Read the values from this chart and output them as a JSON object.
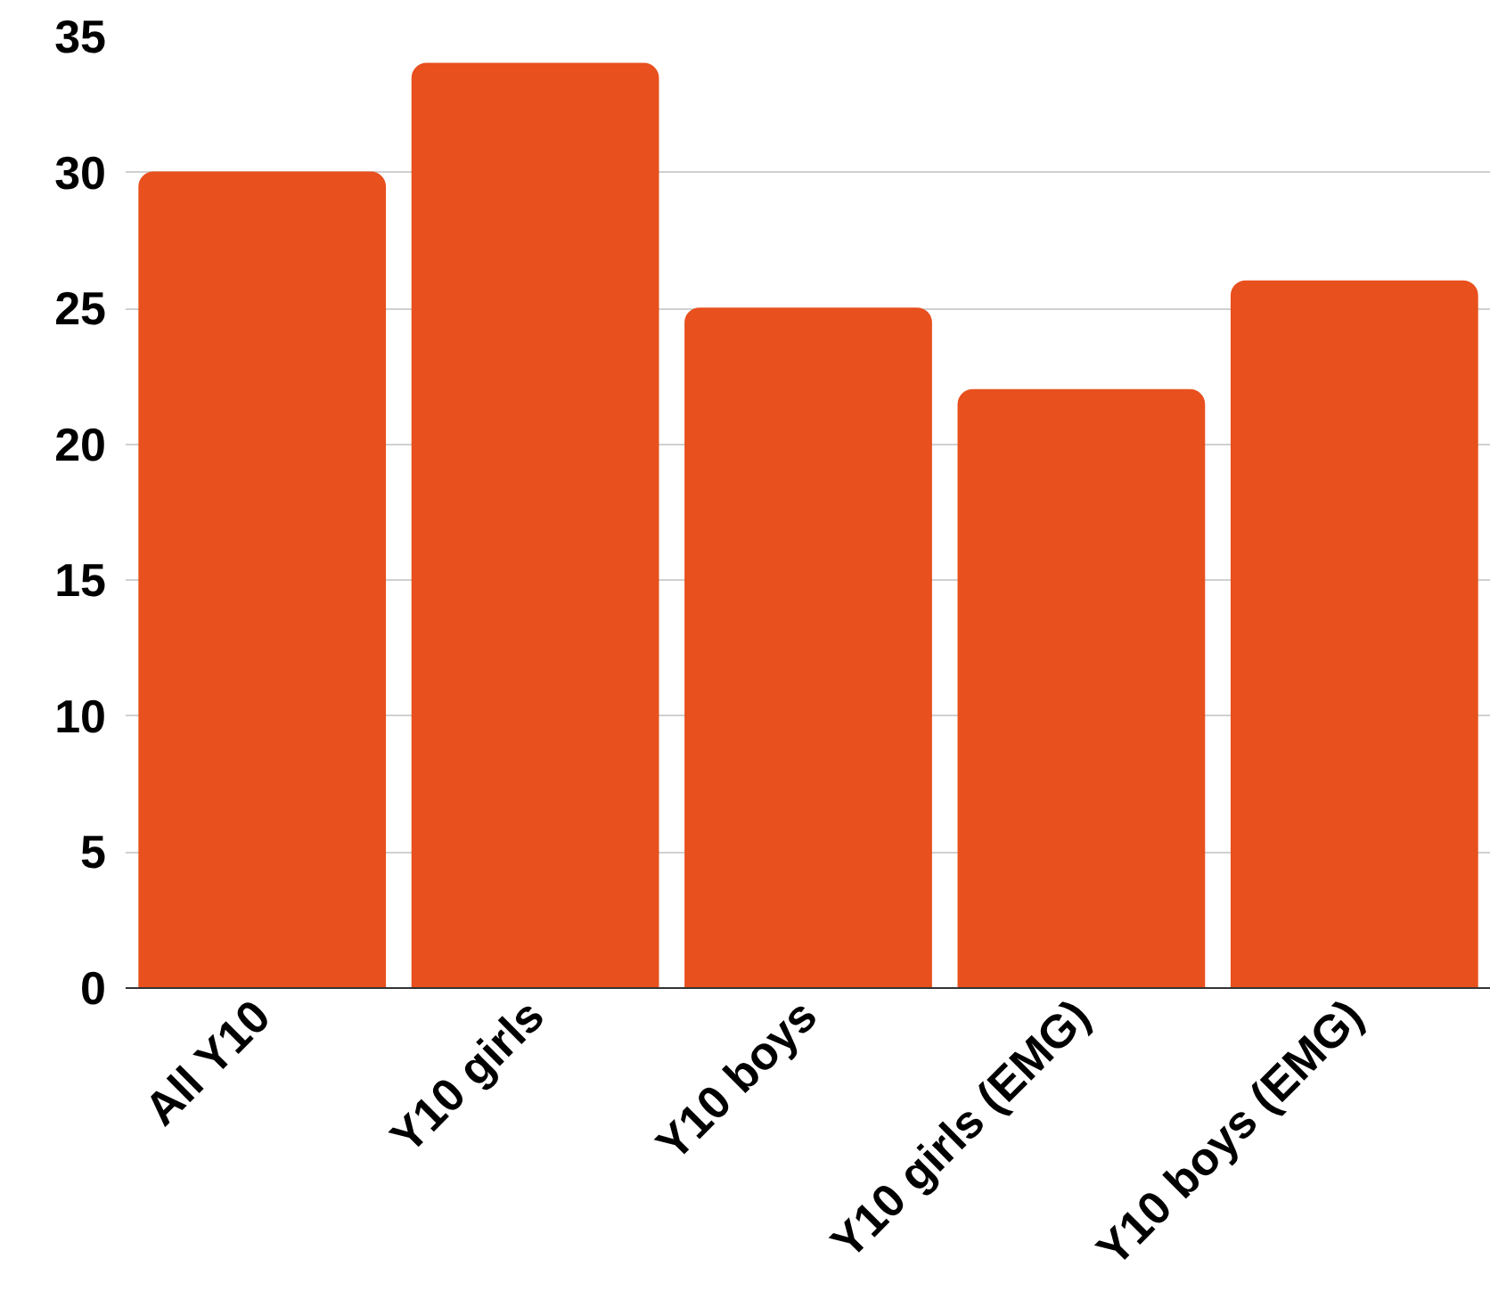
{
  "chart_data": {
    "type": "bar",
    "categories": [
      "All Y10",
      "Y10 girls",
      "Y10 boys",
      "Y10 girls (EMG)",
      "Y10 boys (EMG)"
    ],
    "values": [
      30,
      34,
      25,
      22,
      26
    ],
    "color": "#e8501e",
    "ylim": [
      0,
      35
    ],
    "yticks": [
      0,
      5,
      10,
      15,
      20,
      25,
      30,
      35
    ],
    "grid": "y"
  }
}
